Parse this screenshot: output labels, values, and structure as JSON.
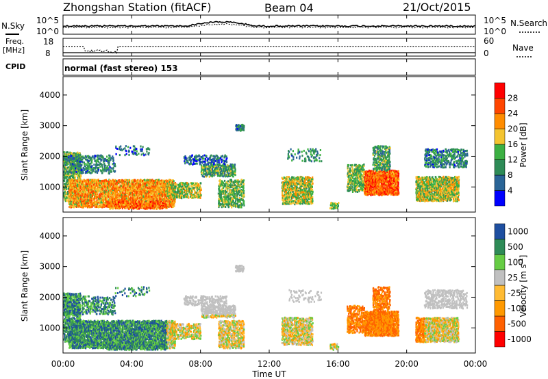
{
  "header": {
    "station": "Zhongshan Station (fitACF)",
    "beam": "Beam 04",
    "date": "21/Oct/2015"
  },
  "panel_labels": {
    "nsky": "N.Sky",
    "nsky_hi": "10^5",
    "nsky_lo": "10^0",
    "nsearch": "N.Search",
    "nsearch_hi": "10^5",
    "nsearch_lo": "10^0",
    "freq_l1": "Freq.",
    "freq_l2": "[MHz]",
    "freq_hi": "18",
    "freq_lo": "8",
    "nave": "Nave",
    "nave_hi": "60",
    "nave_lo": "0",
    "cpid": "CPID",
    "cpid_mode": "normal (fast stereo) 153"
  },
  "colors": {
    "power": [
      "#0000ff",
      "#2a6496",
      "#2e8b57",
      "#3cb043",
      "#f4c430",
      "#ff8c00",
      "#ff4500",
      "#ff0000"
    ],
    "velocity": [
      "#ff0000",
      "#ff6000",
      "#ff9900",
      "#ffbb33",
      "#c0c0c0",
      "#66cc44",
      "#2e8b57",
      "#1e4fa0"
    ]
  },
  "chart_data": [
    {
      "type": "heatmap",
      "ylabel": "Slant Range [km]",
      "ylim": [
        180,
        4600
      ],
      "yticks": [
        "1000",
        "2000",
        "3000",
        "4000"
      ],
      "xlabel": "",
      "xticks": [],
      "colorbar_title": "Power [dB]",
      "colorbar_ticks": [
        "4",
        "8",
        "12",
        "16",
        "20",
        "24",
        "28"
      ]
    },
    {
      "type": "heatmap",
      "ylabel": "Slant Range [km]",
      "ylim": [
        180,
        4600
      ],
      "yticks": [
        "1000",
        "2000",
        "3000",
        "4000"
      ],
      "xlabel": "Time UT",
      "xticks": [
        "00:00",
        "04:00",
        "08:00",
        "12:00",
        "16:00",
        "20:00",
        "00:00"
      ],
      "colorbar_title": "Velocity [m s^-1]",
      "colorbar_ticks": [
        "1000",
        "500",
        "100",
        "25",
        "-25",
        "-100",
        "-500",
        "-1000"
      ]
    }
  ]
}
